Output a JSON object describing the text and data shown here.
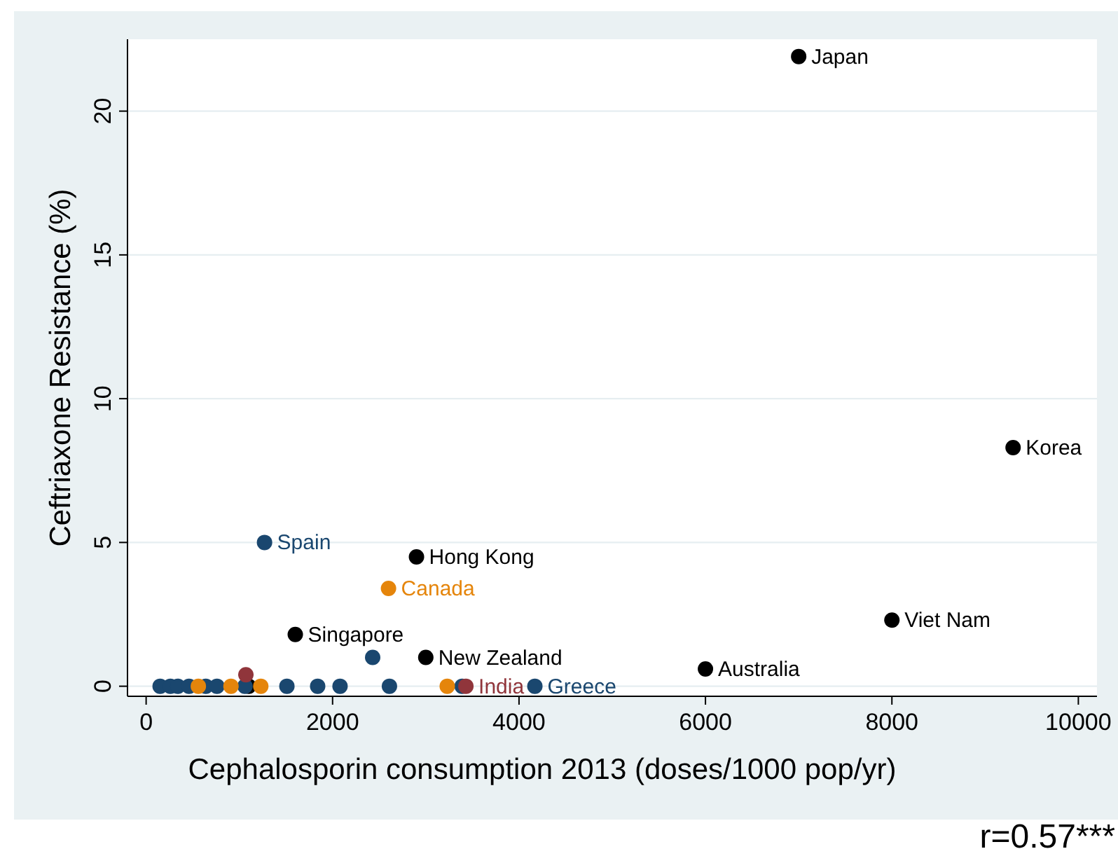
{
  "chart_data": {
    "type": "scatter",
    "xlabel": "Cephalosporin consumption 2013 (doses/1000 pop/yr)",
    "ylabel": "Ceftriaxone Resistance (%)",
    "xlim": [
      -200,
      10200
    ],
    "ylim": [
      -0.35,
      22.5
    ],
    "xticks": [
      0,
      2000,
      4000,
      6000,
      8000,
      10000
    ],
    "yticks": [
      0,
      5,
      10,
      15,
      20
    ],
    "grid": "y",
    "marker": "circle",
    "series": [
      {
        "color": "#000000",
        "x": [
          7000,
          9300,
          8000,
          6000,
          2900,
          1600,
          3000,
          1100
        ],
        "values": [
          21.9,
          8.3,
          2.3,
          0.6,
          4.5,
          1.8,
          1.0,
          0
        ],
        "value_labels": [
          "Japan",
          "Korea",
          "Viet Nam",
          "Australia",
          "Hong Kong",
          "Singapore",
          "New Zealand",
          null
        ]
      },
      {
        "color": "#1a476f",
        "x": [
          1270,
          2430,
          150,
          260,
          340,
          460,
          640,
          760,
          1060,
          1510,
          1840,
          2080,
          2610,
          3390,
          4170
        ],
        "values": [
          5.0,
          1.0,
          0,
          0,
          0,
          0,
          0,
          0,
          0,
          0,
          0,
          0,
          0,
          0,
          0
        ],
        "value_labels": [
          "Spain",
          null,
          null,
          null,
          null,
          null,
          null,
          null,
          null,
          null,
          null,
          null,
          null,
          null,
          "Greece"
        ]
      },
      {
        "color": "#e5850b",
        "x": [
          2600,
          560,
          910,
          1230,
          3230
        ],
        "values": [
          3.4,
          0,
          0,
          0,
          0
        ],
        "value_labels": [
          "Canada",
          null,
          null,
          null,
          null
        ]
      },
      {
        "color": "#90353b",
        "x": [
          1070,
          3430
        ],
        "values": [
          0.4,
          0
        ],
        "value_labels": [
          null,
          "India"
        ]
      }
    ],
    "annotations": [
      "r=0.57***"
    ]
  }
}
